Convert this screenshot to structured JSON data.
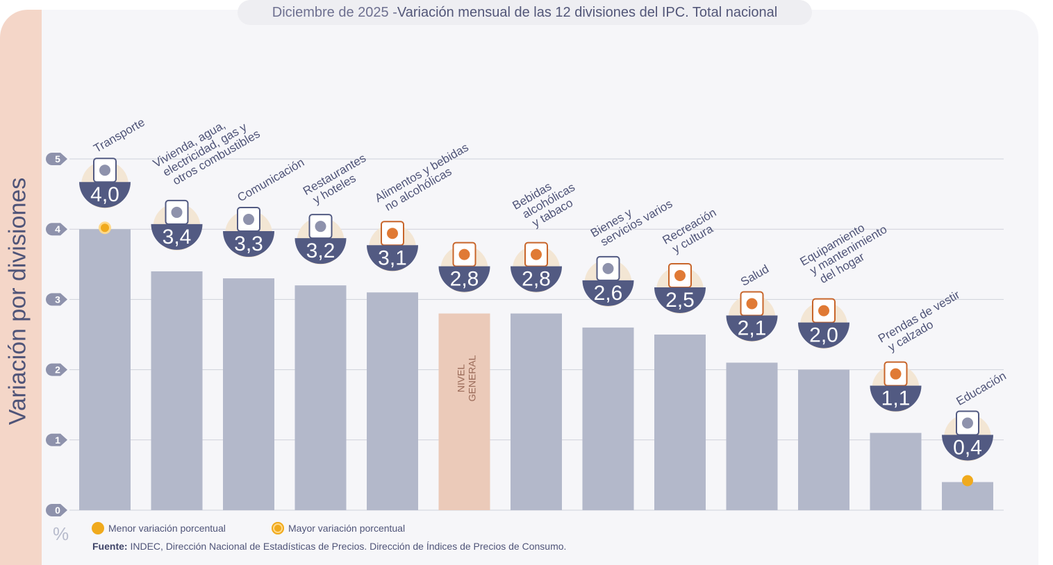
{
  "title": {
    "prefix": "Diciembre de 2025 - ",
    "main": "Variación mensual de las 12 divisiones del IPC. Total nacional"
  },
  "y_axis_label": "Variación por divisiones",
  "unit_label": "%",
  "legend": {
    "min_label": "Menor variación porcentual",
    "max_label": "Mayor variación porcentual"
  },
  "source": {
    "label": "Fuente:",
    "text": " INDEC, Dirección Nacional de Estadísticas de Precios. Dirección de Índices de Precios de Consumo."
  },
  "nivel_general_label": [
    "NIVEL",
    "GENERAL"
  ],
  "colors": {
    "bar": "#b3b8ca",
    "nivel_general_bar": "#ebcab9",
    "badge": "#525a82",
    "badge_halo": "#f3e6d4",
    "marker": "#f0aa1d",
    "grid": "#cfd1da",
    "tick_bubble": "#8e92ac"
  },
  "chart_data": {
    "type": "bar",
    "title": "Diciembre de 2025 - Variación mensual de las 12 divisiones del IPC. Total nacional",
    "xlabel": "",
    "ylabel": "Variación por divisiones (%)",
    "ylim": [
      0,
      5
    ],
    "yticks": [
      0,
      1,
      2,
      3,
      4,
      5
    ],
    "grid": true,
    "legend_position": "bottom-left",
    "categories": [
      "Transporte",
      "Vivienda, agua, electricidad, gas y otros combustibles",
      "Comunicación",
      "Restaurantes y hoteles",
      "Alimentos y bebidas no alcohólicas",
      "Nivel general",
      "Bebidas alcohólicas y tabaco",
      "Bienes y servicios varios",
      "Recreación y cultura",
      "Salud",
      "Equipamiento y mantenimiento del hogar",
      "Prendas de vestir y calzado",
      "Educación"
    ],
    "values": [
      4.0,
      3.4,
      3.3,
      3.2,
      3.1,
      2.8,
      2.8,
      2.6,
      2.5,
      2.1,
      2.0,
      1.1,
      0.4
    ],
    "value_labels": [
      "4,0",
      "3,4",
      "3,3",
      "3,2",
      "3,1",
      "2,8",
      "2,8",
      "2,6",
      "2,5",
      "2,1",
      "2,0",
      "1,1",
      "0,4"
    ],
    "label_lines": [
      [
        "Transporte"
      ],
      [
        "Vivienda, agua,",
        "electricidad, gas y",
        "otros combustibles"
      ],
      [
        "Comunicación"
      ],
      [
        "Restaurantes",
        "y hoteles"
      ],
      [
        "Alimentos y bebidas",
        "no alcohólicas"
      ],
      [],
      [
        "Bebidas",
        "alcohólicas",
        "y tabaco"
      ],
      [
        "Bienes y",
        "servicios varios"
      ],
      [
        "Recreación",
        "y cultura"
      ],
      [
        "Salud"
      ],
      [
        "Equipamiento",
        "y mantenimiento",
        "del hogar"
      ],
      [
        "Prendas de vestir",
        "y calzado"
      ],
      [
        "Educación"
      ]
    ],
    "icons": [
      "bus-sube-card-icon",
      "key-lightbulb-icon",
      "smartphone-icon",
      "plate-cutlery-hotel-icon",
      "roast-chicken-drink-icon",
      "shopping-bag-groceries-icon",
      "wine-bottle-glass-cigarette-icon",
      "comb-scissors-icon",
      "umbrella-sun-chair-icon",
      "medical-cross-icon",
      "washing-machine-ac-icon",
      "tshirt-sneaker-icon",
      "notebook-pencil-icon"
    ],
    "highlight_index": 5,
    "max_marker_index": 0,
    "min_marker_index": 12
  }
}
